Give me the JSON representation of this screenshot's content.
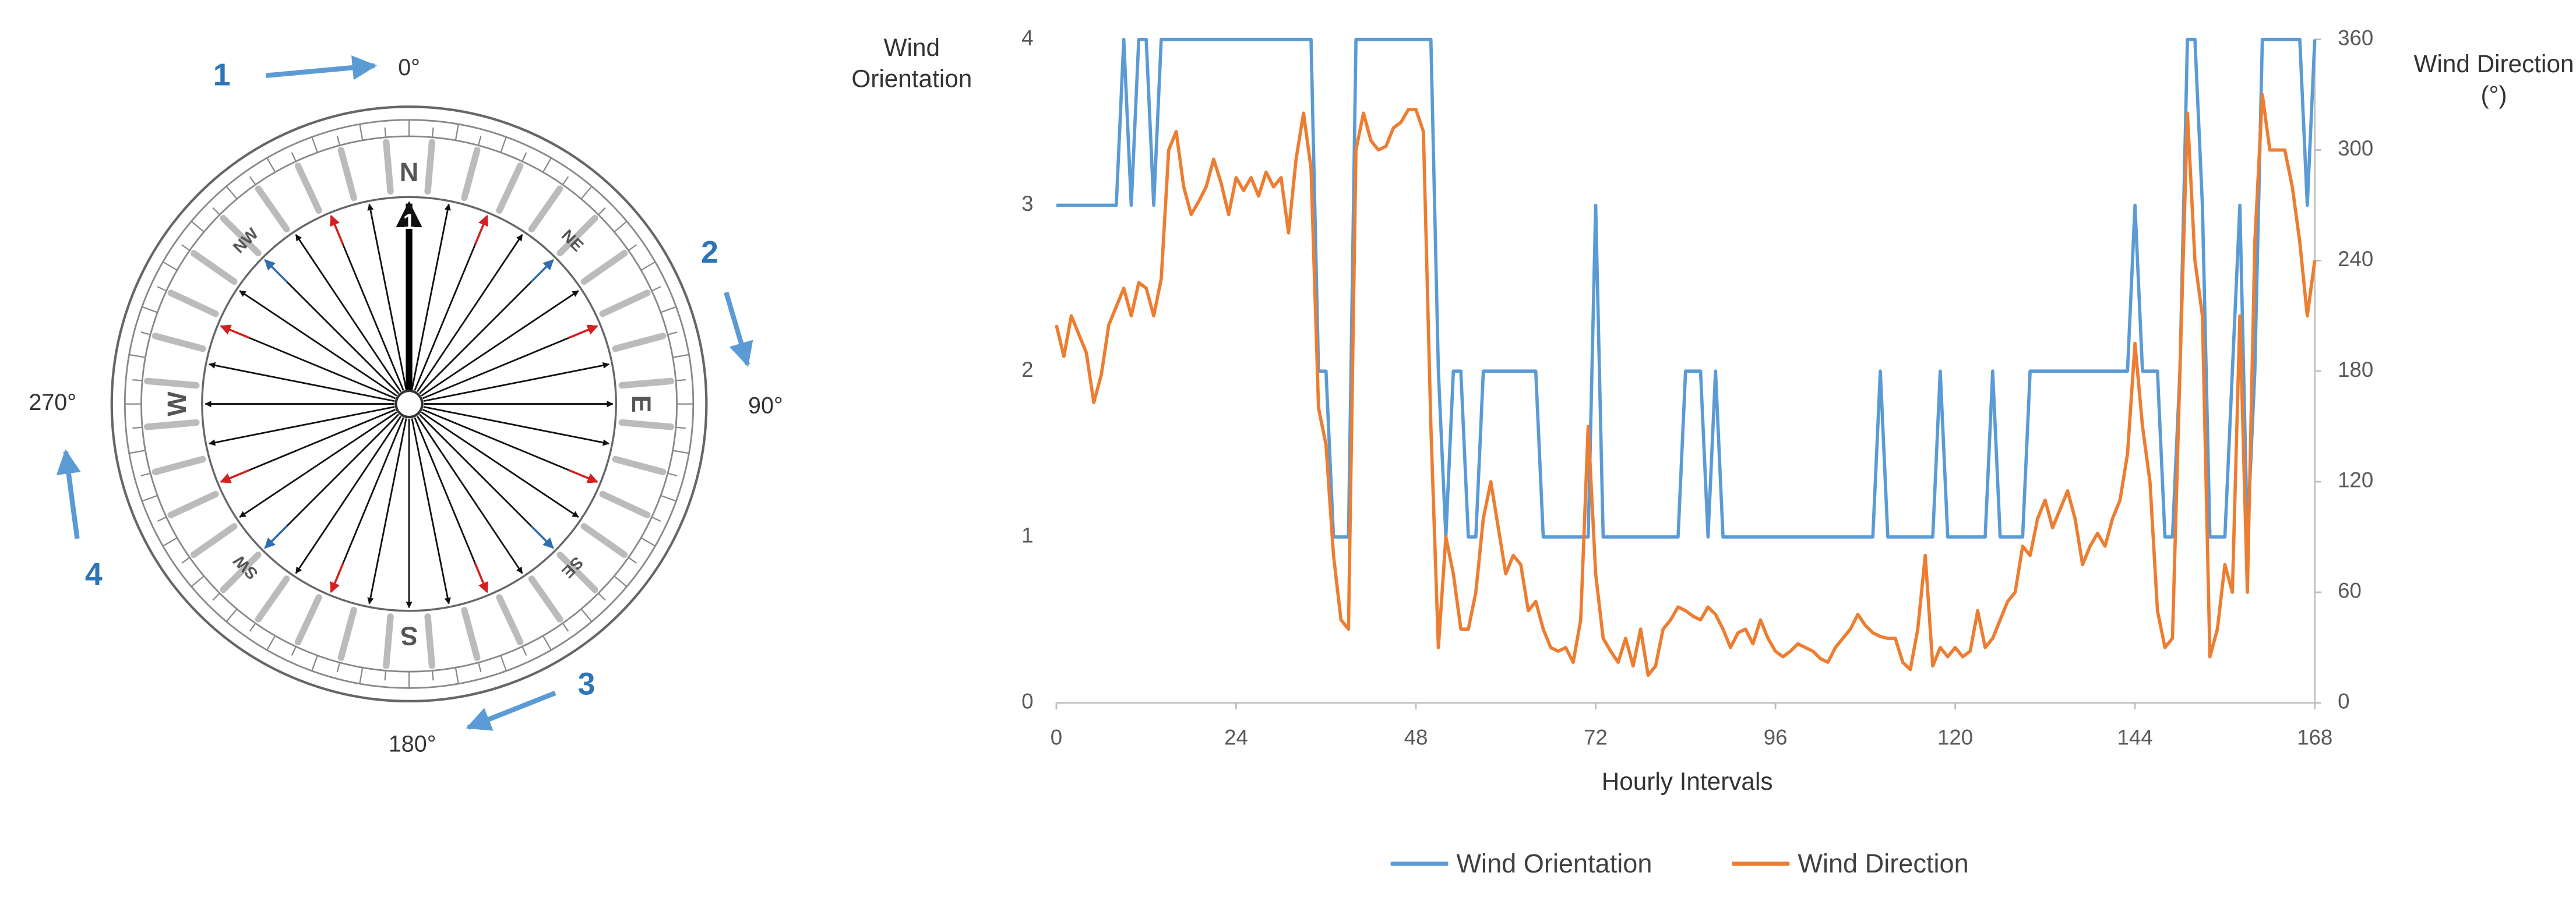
{
  "diagram": {
    "steps": [
      "1",
      "2",
      "3",
      "4"
    ],
    "degrees": [
      "0°",
      "90°",
      "180°",
      "270°"
    ],
    "cardinals": [
      "N",
      "E",
      "S",
      "W"
    ],
    "intercardinals": [
      "NE",
      "SE",
      "SW",
      "NW"
    ],
    "center": "1"
  },
  "chart_data": {
    "type": "line",
    "xlabel": "Hourly Intervals",
    "ylabel": "Wind Orientation",
    "y2label": "Wind Direction (°)",
    "x": [
      0,
      1,
      2,
      3,
      4,
      5,
      6,
      7,
      8,
      9,
      10,
      11,
      12,
      13,
      14,
      15,
      16,
      17,
      18,
      19,
      20,
      21,
      22,
      23,
      24,
      25,
      26,
      27,
      28,
      29,
      30,
      31,
      32,
      33,
      34,
      35,
      36,
      37,
      38,
      39,
      40,
      41,
      42,
      43,
      44,
      45,
      46,
      47,
      48,
      49,
      50,
      51,
      52,
      53,
      54,
      55,
      56,
      57,
      58,
      59,
      60,
      61,
      62,
      63,
      64,
      65,
      66,
      67,
      68,
      69,
      70,
      71,
      72,
      73,
      74,
      75,
      76,
      77,
      78,
      79,
      80,
      81,
      82,
      83,
      84,
      85,
      86,
      87,
      88,
      89,
      90,
      91,
      92,
      93,
      94,
      95,
      96,
      97,
      98,
      99,
      100,
      101,
      102,
      103,
      104,
      105,
      106,
      107,
      108,
      109,
      110,
      111,
      112,
      113,
      114,
      115,
      116,
      117,
      118,
      119,
      120,
      121,
      122,
      123,
      124,
      125,
      126,
      127,
      128,
      129,
      130,
      131,
      132,
      133,
      134,
      135,
      136,
      137,
      138,
      139,
      140,
      141,
      142,
      143,
      144,
      145,
      146,
      147,
      148,
      149,
      150,
      151,
      152,
      153,
      154,
      155,
      156,
      157,
      158,
      159,
      160,
      161,
      162,
      163,
      164,
      165,
      166,
      167,
      168
    ],
    "series": [
      {
        "name": "Wind Orientation",
        "color": "#5b9bd5",
        "values": [
          3,
          3,
          3,
          3,
          3,
          3,
          3,
          3,
          3,
          4,
          3,
          4,
          4,
          3,
          4,
          4,
          4,
          4,
          4,
          4,
          4,
          4,
          4,
          4,
          4,
          4,
          4,
          4,
          4,
          4,
          4,
          4,
          4,
          4,
          4,
          2,
          2,
          1,
          1,
          1,
          4,
          4,
          4,
          4,
          4,
          4,
          4,
          4,
          4,
          4,
          4,
          2,
          1,
          2,
          2,
          1,
          1,
          2,
          2,
          2,
          2,
          2,
          2,
          2,
          2,
          1,
          1,
          1,
          1,
          1,
          1,
          1,
          3,
          1,
          1,
          1,
          1,
          1,
          1,
          1,
          1,
          1,
          1,
          1,
          2,
          2,
          2,
          1,
          2,
          1,
          1,
          1,
          1,
          1,
          1,
          1,
          1,
          1,
          1,
          1,
          1,
          1,
          1,
          1,
          1,
          1,
          1,
          1,
          1,
          1,
          2,
          1,
          1,
          1,
          1,
          1,
          1,
          1,
          2,
          1,
          1,
          1,
          1,
          1,
          1,
          2,
          1,
          1,
          1,
          1,
          2,
          2,
          2,
          2,
          2,
          2,
          2,
          2,
          2,
          2,
          2,
          2,
          2,
          2,
          3,
          2,
          2,
          2,
          1,
          1,
          2,
          4,
          4,
          3,
          1,
          1,
          1,
          2,
          3,
          1,
          2,
          4,
          4,
          4,
          4,
          4,
          4,
          3,
          4
        ]
      },
      {
        "name": "Wind Direction",
        "color": "#ed7d31",
        "axis": "y2",
        "values": [
          205,
          188,
          210,
          200,
          190,
          163,
          178,
          205,
          215,
          225,
          210,
          228,
          225,
          210,
          230,
          300,
          310,
          280,
          265,
          272,
          280,
          295,
          282,
          265,
          285,
          278,
          285,
          275,
          288,
          280,
          285,
          255,
          295,
          320,
          290,
          160,
          140,
          80,
          45,
          40,
          300,
          320,
          305,
          300,
          302,
          312,
          315,
          322,
          322,
          310,
          150,
          30,
          90,
          70,
          40,
          40,
          60,
          100,
          120,
          95,
          70,
          80,
          75,
          50,
          55,
          40,
          30,
          28,
          30,
          22,
          45,
          150,
          70,
          35,
          28,
          22,
          35,
          20,
          40,
          15,
          20,
          40,
          45,
          52,
          50,
          47,
          45,
          52,
          48,
          40,
          30,
          38,
          40,
          32,
          45,
          35,
          28,
          25,
          28,
          32,
          30,
          28,
          24,
          22,
          30,
          35,
          40,
          48,
          42,
          38,
          36,
          35,
          35,
          22,
          18,
          40,
          80,
          20,
          30,
          25,
          30,
          25,
          28,
          50,
          30,
          35,
          45,
          55,
          60,
          85,
          80,
          100,
          110,
          95,
          105,
          115,
          100,
          75,
          85,
          92,
          85,
          100,
          110,
          135,
          195,
          150,
          120,
          50,
          30,
          35,
          180,
          320,
          240,
          210,
          25,
          40,
          75,
          60,
          210,
          60,
          250,
          330,
          300,
          300,
          300,
          280,
          250,
          210,
          240
        ]
      }
    ],
    "xlim": [
      0,
      168
    ],
    "xticks": [
      0,
      24,
      48,
      72,
      96,
      120,
      144,
      168
    ],
    "ylim": [
      0,
      4
    ],
    "yticks": [
      0,
      1,
      2,
      3,
      4
    ],
    "y2lim": [
      0,
      360
    ],
    "y2ticks": [
      0,
      60,
      120,
      180,
      240,
      300,
      360
    ],
    "grid": false,
    "legend": "bottom"
  }
}
